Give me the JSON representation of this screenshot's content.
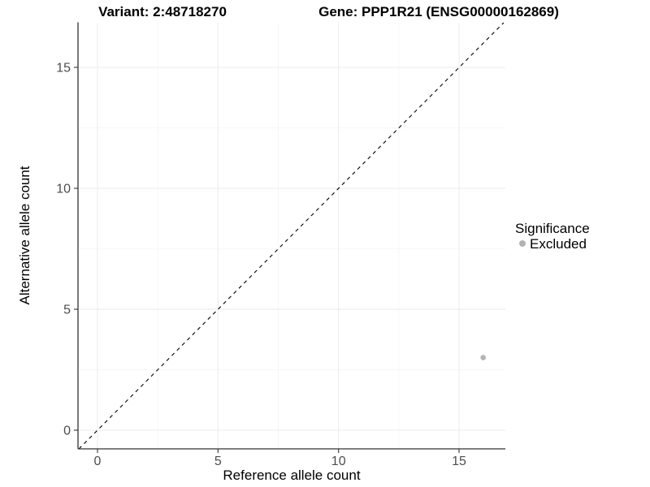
{
  "chart_data": {
    "type": "scatter",
    "titles": [
      "Variant: 2:48718270",
      "Gene: PPP1R21 (ENSG00000162869)"
    ],
    "xlabel": "Reference allele count",
    "ylabel": "Alternative allele count",
    "x_ticks": [
      0,
      5,
      10,
      15
    ],
    "y_ticks": [
      0,
      5,
      10,
      15
    ],
    "x_tick_labels": [
      "0",
      "5",
      "10",
      "15"
    ],
    "y_tick_labels": [
      "0",
      "5",
      "10",
      "15"
    ],
    "xlim": [
      -0.8,
      16.9
    ],
    "ylim": [
      -0.8,
      16.9
    ],
    "grid": "major and minor gridlines, white background",
    "points": [
      {
        "x": 16,
        "y": 3,
        "series": "Excluded"
      }
    ],
    "reference_line": {
      "type": "identity",
      "equation": "y = x",
      "style": "dashed",
      "color": "#000000"
    },
    "legend": {
      "title": "Significance",
      "position": "right",
      "entries": [
        {
          "label": "Excluded",
          "color": "#b3b3b3"
        }
      ]
    },
    "colors": {
      "point": "#b3b3b3",
      "axis_line": "#333333",
      "tick_label": "#4d4d4d",
      "grid_major": "#ebebeb",
      "grid_minor": "#f5f5f5"
    }
  }
}
